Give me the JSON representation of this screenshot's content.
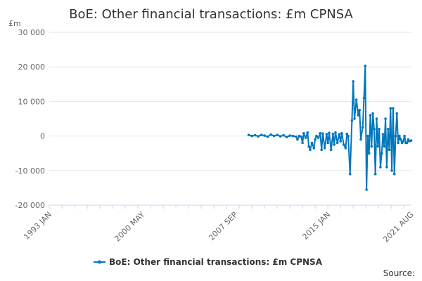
{
  "chart_data": {
    "type": "line",
    "title": "BoE: Other financial transactions: £m CPNSA",
    "unit_label": "£m",
    "ylim": [
      -20000,
      30000
    ],
    "y_ticks": [
      30000,
      20000,
      10000,
      0,
      -10000,
      -20000
    ],
    "y_tick_labels": [
      "30 000",
      "20 000",
      "10 000",
      "0",
      "-10 000",
      "-20 000"
    ],
    "xlim": [
      1993.0,
      2021.6
    ],
    "x_ticks": [
      1993.0,
      2000.33,
      2007.67,
      2015.0,
      2021.58
    ],
    "x_tick_labels": [
      "1993 JAN",
      "2000 MAY",
      "2007 SEP",
      "2015 JAN",
      "2021 AUG"
    ],
    "grid": "horizontal",
    "legend_position": "bottom",
    "series": [
      {
        "name": "BoE: Other financial transactions: £m CPNSA",
        "color": "#0076bd",
        "x": [
          2008.75,
          2009.0,
          2009.25,
          2009.5,
          2009.75,
          2010.0,
          2010.25,
          2010.5,
          2010.75,
          2011.0,
          2011.25,
          2011.5,
          2011.75,
          2012.0,
          2012.25,
          2012.5,
          2012.6,
          2012.75,
          2012.9,
          2013.0,
          2013.1,
          2013.25,
          2013.4,
          2013.5,
          2013.6,
          2013.75,
          2013.9,
          2014.0,
          2014.1,
          2014.25,
          2014.4,
          2014.5,
          2014.6,
          2014.75,
          2014.9,
          2015.0,
          2015.1,
          2015.25,
          2015.4,
          2015.5,
          2015.6,
          2015.75,
          2015.9,
          2016.0,
          2016.1,
          2016.25,
          2016.4,
          2016.5,
          2016.6,
          2016.75,
          2016.9,
          2017.0,
          2017.1,
          2017.25,
          2017.4,
          2017.5,
          2017.6,
          2017.75,
          2017.85,
          2017.95,
          2018.05,
          2018.15,
          2018.25,
          2018.35,
          2018.45,
          2018.55,
          2018.65,
          2018.75,
          2018.85,
          2018.95,
          2019.05,
          2019.15,
          2019.25,
          2019.35,
          2019.45,
          2019.55,
          2019.65,
          2019.75,
          2019.85,
          2019.95,
          2020.05,
          2020.15,
          2020.25,
          2020.35,
          2020.45,
          2020.55,
          2020.65,
          2020.75,
          2020.85,
          2020.95,
          2021.05,
          2021.15,
          2021.25,
          2021.35,
          2021.45,
          2021.58
        ],
        "y": [
          300,
          0,
          200,
          -100,
          300,
          100,
          -200,
          400,
          0,
          300,
          -100,
          200,
          -300,
          100,
          0,
          -200,
          -1000,
          0,
          -200,
          -2000,
          800,
          -500,
          1000,
          -3000,
          -4000,
          -2000,
          -3500,
          -1000,
          0,
          -500,
          800,
          -4000,
          700,
          -3500,
          500,
          -2000,
          900,
          -4000,
          600,
          -2500,
          1000,
          -2000,
          500,
          -1500,
          800,
          -2500,
          -3500,
          600,
          0,
          -11000,
          4500,
          15800,
          5000,
          10500,
          6000,
          7500,
          -1000,
          2500,
          11000,
          20300,
          -15500,
          0,
          -5000,
          6000,
          -3000,
          6500,
          2000,
          -11000,
          5000,
          -3000,
          2000,
          -9000,
          -5000,
          500,
          -3000,
          5000,
          -9000,
          2000,
          -4000,
          8000,
          -10000,
          8000,
          -11000,
          0,
          6500,
          -2000,
          0,
          -1000,
          -2000,
          -1500,
          0,
          -2000,
          -2000,
          -1000,
          -1500,
          -1300
        ]
      }
    ]
  },
  "source_label": "Source:"
}
